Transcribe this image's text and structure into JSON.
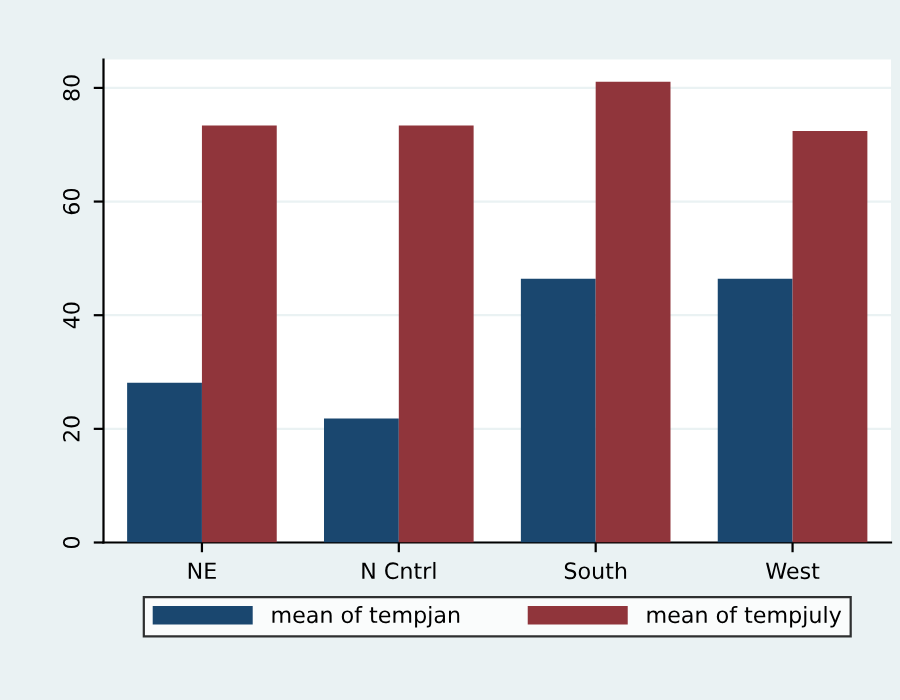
{
  "chart_data": {
    "type": "bar",
    "categories": [
      "NE",
      "N Cntrl",
      "South",
      "West"
    ],
    "series": [
      {
        "name": "mean of tempjan",
        "color": "#1a476f",
        "values": [
          28.1,
          21.8,
          46.4,
          46.4
        ]
      },
      {
        "name": "mean of tempjuly",
        "color": "#90353b",
        "values": [
          73.4,
          73.4,
          81.1,
          72.4
        ]
      }
    ],
    "ylim": [
      0,
      85
    ],
    "yticks": [
      0,
      20,
      40,
      60,
      80
    ],
    "grid": "y",
    "legend": "bottom"
  }
}
